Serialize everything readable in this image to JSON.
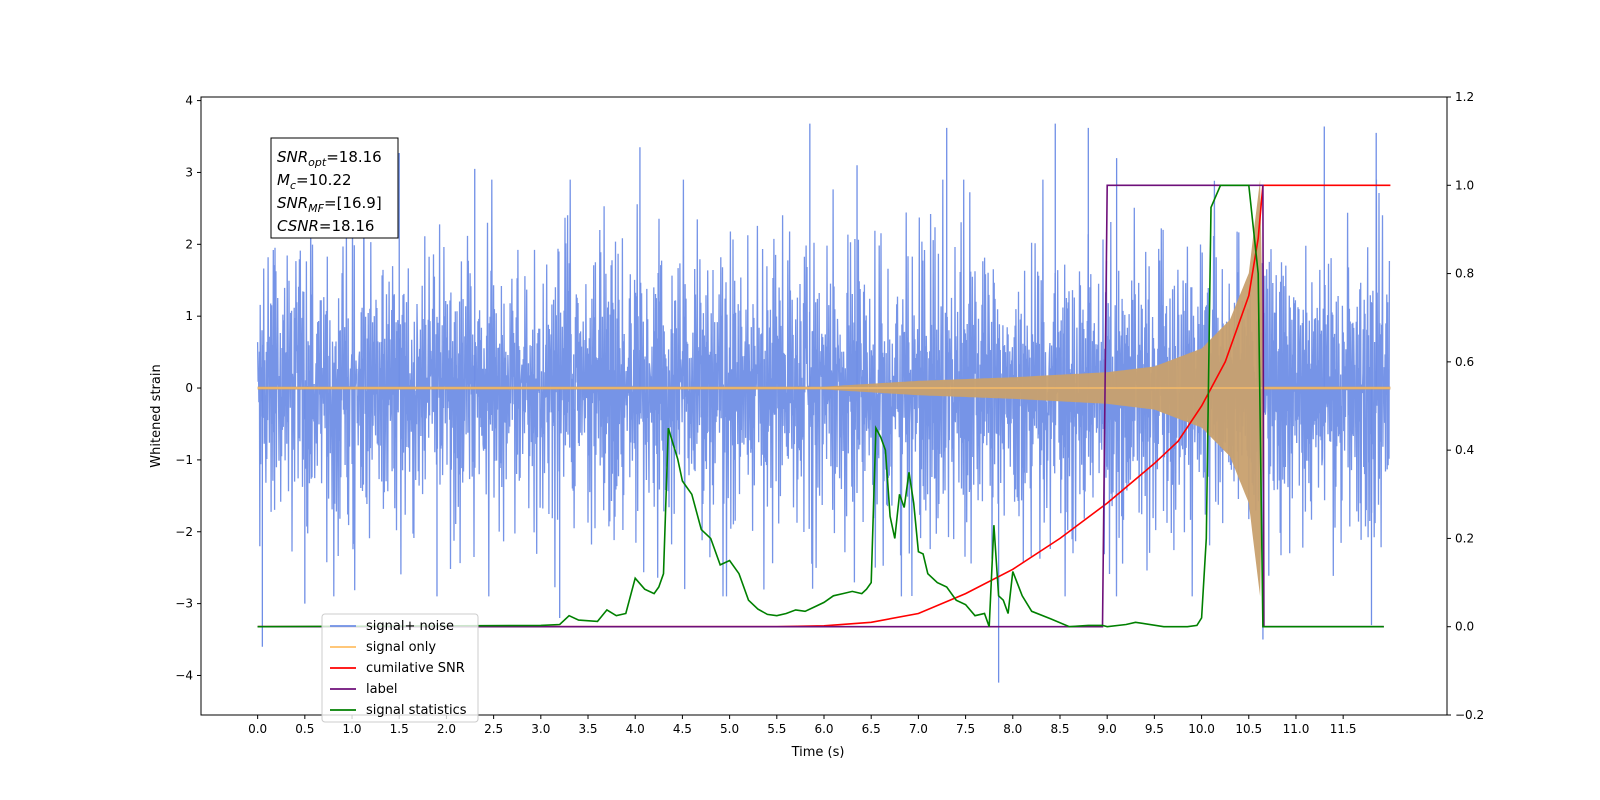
{
  "chart_data": {
    "type": "line",
    "xlabel": "Time (s)",
    "ylabel": "Whitened strain",
    "xlim": [
      -0.6,
      12.6
    ],
    "ylim": [
      -4.55,
      4.05
    ],
    "y2lim": [
      -0.2,
      1.2
    ],
    "x_ticks": [
      "0.0",
      "0.5",
      "1.0",
      "1.5",
      "2.0",
      "2.5",
      "3.0",
      "3.5",
      "4.0",
      "4.5",
      "5.0",
      "5.5",
      "6.0",
      "6.5",
      "7.0",
      "7.5",
      "8.0",
      "8.5",
      "9.0",
      "9.5",
      "10.0",
      "10.5",
      "11.0",
      "11.5"
    ],
    "y_ticks": [
      "4",
      "3",
      "2",
      "1",
      "0",
      "−1",
      "−2",
      "−3",
      "−4"
    ],
    "y2_ticks": [
      "1.2",
      "1.0",
      "0.8",
      "0.6",
      "0.4",
      "0.2",
      "0.0",
      "−0.2"
    ],
    "annotation": {
      "lines": [
        {
          "main": "SNR",
          "sub": "opt",
          "rest": "=18.16"
        },
        {
          "main": "M",
          "sub": "c",
          "rest": "=10.22"
        },
        {
          "main": "SNR",
          "sub": "MF",
          "rest": "=[16.9]"
        },
        {
          "main": "CSNR",
          "sub": "",
          "rest": "=18.16"
        }
      ]
    },
    "legend": {
      "placement": "lower-left",
      "entries": [
        {
          "label": "signal+ noise",
          "color": "#6f8ee6"
        },
        {
          "label": "signal only",
          "color": "#ffbf66"
        },
        {
          "label": "cumilative SNR",
          "color": "#ff0000"
        },
        {
          "label": "label",
          "color": "#6e0f7a"
        },
        {
          "label": "signal statistics",
          "color": "#008000"
        }
      ]
    },
    "series": [
      {
        "name": "signal+ noise",
        "axis": "left",
        "kind": "noise",
        "x_range": [
          0.0,
          11.99
        ],
        "color": "#6f8ee6",
        "typical_amplitude": 1.7,
        "spikes": [
          {
            "x": 0.05,
            "y": -3.6
          },
          {
            "x": 1.5,
            "y": 3.27
          },
          {
            "x": 4.05,
            "y": 3.35
          },
          {
            "x": 5.85,
            "y": 3.68
          },
          {
            "x": 7.3,
            "y": 3.62
          },
          {
            "x": 7.85,
            "y": -4.1
          },
          {
            "x": 8.45,
            "y": 3.68
          },
          {
            "x": 8.8,
            "y": 3.62
          },
          {
            "x": 10.65,
            "y": -3.5
          },
          {
            "x": 11.3,
            "y": 3.64
          },
          {
            "x": 11.85,
            "y": 3.55
          },
          {
            "x": 11.8,
            "y": -3.3
          },
          {
            "x": 2.3,
            "y": 3.05
          },
          {
            "x": 9.1,
            "y": 3.2
          },
          {
            "x": 0.5,
            "y": -3.0
          },
          {
            "x": 6.35,
            "y": 3.1
          },
          {
            "x": 3.2,
            "y": -3.2
          },
          {
            "x": 1.9,
            "y": -2.9
          }
        ]
      },
      {
        "name": "signal only",
        "axis": "left",
        "kind": "chirp",
        "color": "#c8a06e",
        "envelope": [
          [
            0.0,
            0.02
          ],
          [
            6.0,
            0.02
          ],
          [
            7.0,
            0.1
          ],
          [
            8.0,
            0.15
          ],
          [
            9.0,
            0.22
          ],
          [
            9.5,
            0.3
          ],
          [
            10.0,
            0.55
          ],
          [
            10.3,
            0.95
          ],
          [
            10.5,
            1.6
          ],
          [
            10.62,
            2.9
          ],
          [
            10.66,
            0.02
          ],
          [
            12.0,
            0.02
          ]
        ]
      },
      {
        "name": "cumilative SNR",
        "axis": "right",
        "color": "#ff0000",
        "x": [
          0.0,
          5.5,
          6.0,
          6.5,
          7.0,
          7.5,
          8.0,
          8.5,
          9.0,
          9.5,
          9.75,
          10.0,
          10.25,
          10.5,
          10.6,
          10.65,
          12.0
        ],
        "y": [
          0.0,
          0.0,
          0.002,
          0.01,
          0.03,
          0.075,
          0.13,
          0.2,
          0.28,
          0.37,
          0.42,
          0.5,
          0.6,
          0.75,
          0.88,
          1.0,
          1.0
        ]
      },
      {
        "name": "label",
        "axis": "right",
        "color": "#6e0f7a",
        "x": [
          0.0,
          8.95,
          9.0,
          10.65,
          10.66,
          11.93
        ],
        "y": [
          0.0,
          0.0,
          1.0,
          1.0,
          0.0,
          0.0
        ]
      },
      {
        "name": "signal statistics",
        "axis": "right",
        "color": "#008000",
        "x": [
          0.0,
          3.0,
          3.2,
          3.3,
          3.4,
          3.6,
          3.7,
          3.8,
          3.9,
          4.0,
          4.1,
          4.2,
          4.25,
          4.3,
          4.35,
          4.45,
          4.5,
          4.6,
          4.7,
          4.8,
          4.9,
          5.0,
          5.1,
          5.2,
          5.3,
          5.4,
          5.5,
          5.6,
          5.7,
          5.8,
          5.9,
          6.0,
          6.1,
          6.2,
          6.3,
          6.4,
          6.45,
          6.5,
          6.55,
          6.6,
          6.65,
          6.7,
          6.75,
          6.8,
          6.85,
          6.9,
          6.95,
          7.0,
          7.05,
          7.1,
          7.2,
          7.3,
          7.4,
          7.5,
          7.6,
          7.7,
          7.75,
          7.8,
          7.85,
          7.9,
          7.95,
          8.0,
          8.1,
          8.2,
          8.4,
          8.6,
          8.8,
          8.95,
          9.0,
          9.2,
          9.3,
          9.6,
          9.85,
          9.95,
          10.0,
          10.05,
          10.1,
          10.2,
          10.5,
          10.6,
          10.65,
          10.7,
          11.93
        ],
        "y": [
          0.0,
          0.003,
          0.005,
          0.025,
          0.015,
          0.012,
          0.038,
          0.025,
          0.03,
          0.11,
          0.085,
          0.075,
          0.09,
          0.12,
          0.45,
          0.38,
          0.33,
          0.3,
          0.22,
          0.2,
          0.14,
          0.15,
          0.12,
          0.06,
          0.04,
          0.028,
          0.025,
          0.03,
          0.038,
          0.035,
          0.045,
          0.055,
          0.07,
          0.075,
          0.08,
          0.075,
          0.085,
          0.1,
          0.45,
          0.43,
          0.4,
          0.25,
          0.2,
          0.3,
          0.27,
          0.35,
          0.28,
          0.17,
          0.165,
          0.12,
          0.1,
          0.09,
          0.06,
          0.05,
          0.025,
          0.03,
          0.0,
          0.23,
          0.07,
          0.06,
          0.03,
          0.125,
          0.07,
          0.035,
          0.018,
          0.0,
          0.003,
          0.003,
          0.0,
          0.005,
          0.01,
          0.0,
          0.0,
          0.003,
          0.02,
          0.2,
          0.95,
          1.0,
          1.0,
          0.8,
          0.0,
          0.0,
          0.0
        ]
      }
    ]
  }
}
